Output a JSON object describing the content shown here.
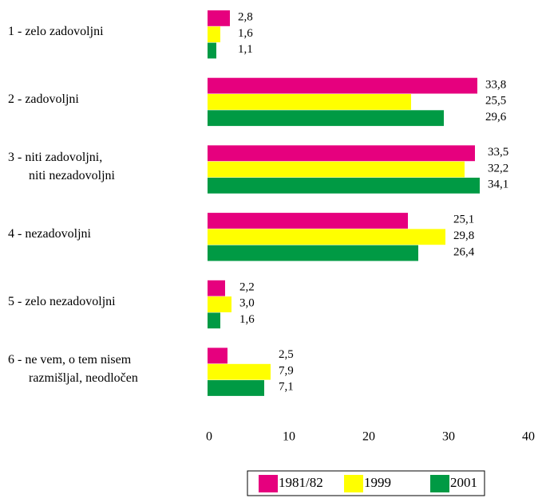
{
  "chart_data": {
    "type": "hbar",
    "categories": [
      [
        "1 - zelo zadovoljni"
      ],
      [
        "2 - zadovoljni"
      ],
      [
        "3 - niti zadovoljni,",
        "niti nezadovoljni"
      ],
      [
        "4 - nezadovoljni"
      ],
      [
        "5 - zelo nezadovoljni"
      ],
      [
        "6 - ne vem, o tem nisem",
        "razmišljal, neodločen"
      ]
    ],
    "series": [
      {
        "name": "1981/82",
        "color": "#e6007e",
        "values": [
          2.8,
          33.8,
          33.5,
          25.1,
          2.2,
          2.5
        ],
        "value_labels": [
          "2,8",
          "33,8",
          "33,5",
          "25,1",
          "2,2",
          "2,5"
        ]
      },
      {
        "name": "1999",
        "color": "#ffff00",
        "values": [
          1.6,
          25.5,
          32.2,
          29.8,
          3.0,
          7.9
        ],
        "value_labels": [
          "1,6",
          "25,5",
          "32,2",
          "29,8",
          "3,0",
          "7,9"
        ]
      },
      {
        "name": "2001",
        "color": "#009a44",
        "values": [
          1.1,
          29.6,
          34.1,
          26.4,
          1.6,
          7.1
        ],
        "value_labels": [
          "1,1",
          "29,6",
          "34,1",
          "26,4",
          "1,6",
          "7,1"
        ]
      }
    ],
    "xlim": [
      0,
      40
    ],
    "xticks": [
      0,
      10,
      20,
      30,
      40
    ],
    "legend": "bottom"
  }
}
